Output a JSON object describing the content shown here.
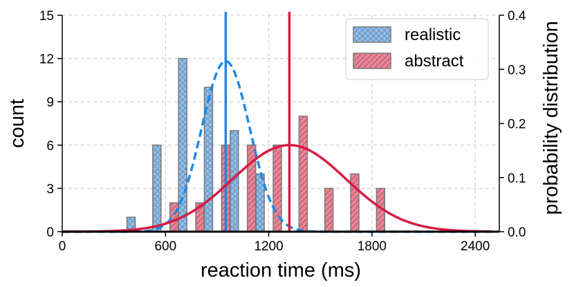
{
  "chart_data": {
    "type": "histogram",
    "xlabel": "reaction time (ms)",
    "ylabel": "count",
    "ylabel_right": "probability distribution",
    "xlim": [
      0,
      2540
    ],
    "ylim": [
      0,
      15
    ],
    "ylim_right": [
      0,
      0.4
    ],
    "xticks": [
      0,
      600,
      1200,
      1800,
      2400
    ],
    "yticks": [
      0,
      3,
      6,
      9,
      12,
      15
    ],
    "yticks_right": [
      0.0,
      0.1,
      0.2,
      0.3,
      0.4
    ],
    "grid": true,
    "legend_position": "top-right",
    "bar_width": 48,
    "series": [
      {
        "name": "realistic",
        "color": "#8fbfef",
        "edge_color": "#777777",
        "hatch": "cross",
        "bars": [
          {
            "x": 400,
            "count": 1
          },
          {
            "x": 550,
            "count": 6
          },
          {
            "x": 700,
            "count": 12
          },
          {
            "x": 850,
            "count": 10
          },
          {
            "x": 1000,
            "count": 7
          },
          {
            "x": 1150,
            "count": 4
          }
        ],
        "fit_mean": 950,
        "fit_std": 140,
        "fit_peak": 0.315,
        "mean_line": 950,
        "line_color": "#1e88e5",
        "line_style": "dashed"
      },
      {
        "name": "abstract",
        "color": "#ec8496",
        "edge_color": "#777777",
        "hatch": "diagonal",
        "bars": [
          {
            "x": 650,
            "count": 2
          },
          {
            "x": 800,
            "count": 2
          },
          {
            "x": 950,
            "count": 6
          },
          {
            "x": 1100,
            "count": 6
          },
          {
            "x": 1250,
            "count": 6
          },
          {
            "x": 1400,
            "count": 8
          },
          {
            "x": 1550,
            "count": 3
          },
          {
            "x": 1700,
            "count": 4
          },
          {
            "x": 1850,
            "count": 3
          }
        ],
        "fit_mean": 1320,
        "fit_std": 330,
        "fit_peak": 0.16,
        "mean_line": 1320,
        "line_color": "#d81b43",
        "line_style": "solid"
      }
    ]
  }
}
